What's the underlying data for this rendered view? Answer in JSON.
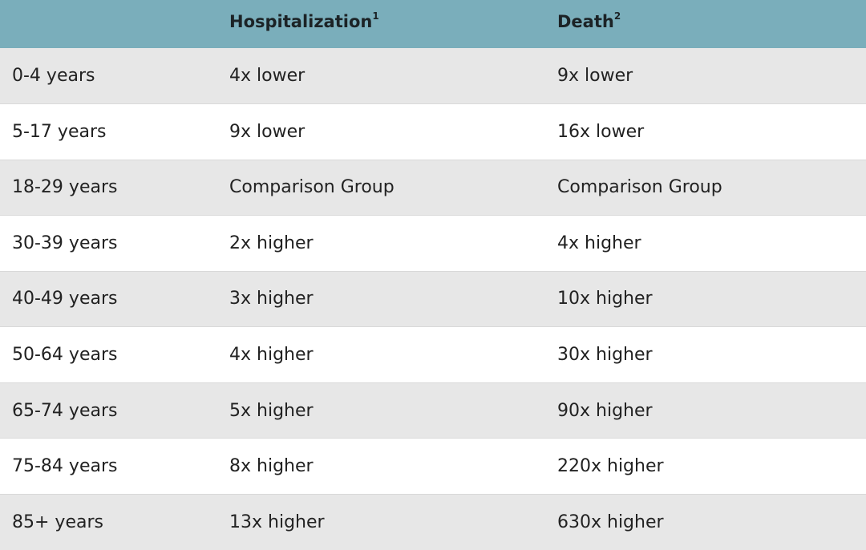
{
  "header": {
    "col1": "",
    "col2_label": "Hospitalization",
    "col2_note": "1",
    "col3_label": "Death",
    "col3_note": "2"
  },
  "rows": [
    {
      "age": "0-4 years",
      "hospitalization": "4x lower",
      "death": "9x lower"
    },
    {
      "age": "5-17 years",
      "hospitalization": "9x lower",
      "death": "16x lower"
    },
    {
      "age": "18-29 years",
      "hospitalization": "Comparison Group",
      "death": "Comparison Group"
    },
    {
      "age": "30-39 years",
      "hospitalization": "2x higher",
      "death": "4x higher"
    },
    {
      "age": "40-49 years",
      "hospitalization": "3x higher",
      "death": "10x higher"
    },
    {
      "age": "50-64 years",
      "hospitalization": "4x higher",
      "death": "30x higher"
    },
    {
      "age": "65-74 years",
      "hospitalization": "5x higher",
      "death": "90x higher"
    },
    {
      "age": "75-84 years",
      "hospitalization": "8x higher",
      "death": "220x higher"
    },
    {
      "age": "85+ years",
      "hospitalization": "13x higher",
      "death": "630x higher"
    }
  ],
  "colors": {
    "header_bg": "#7aaebb",
    "row_odd_bg": "#e7e7e7",
    "row_even_bg": "#ffffff"
  }
}
